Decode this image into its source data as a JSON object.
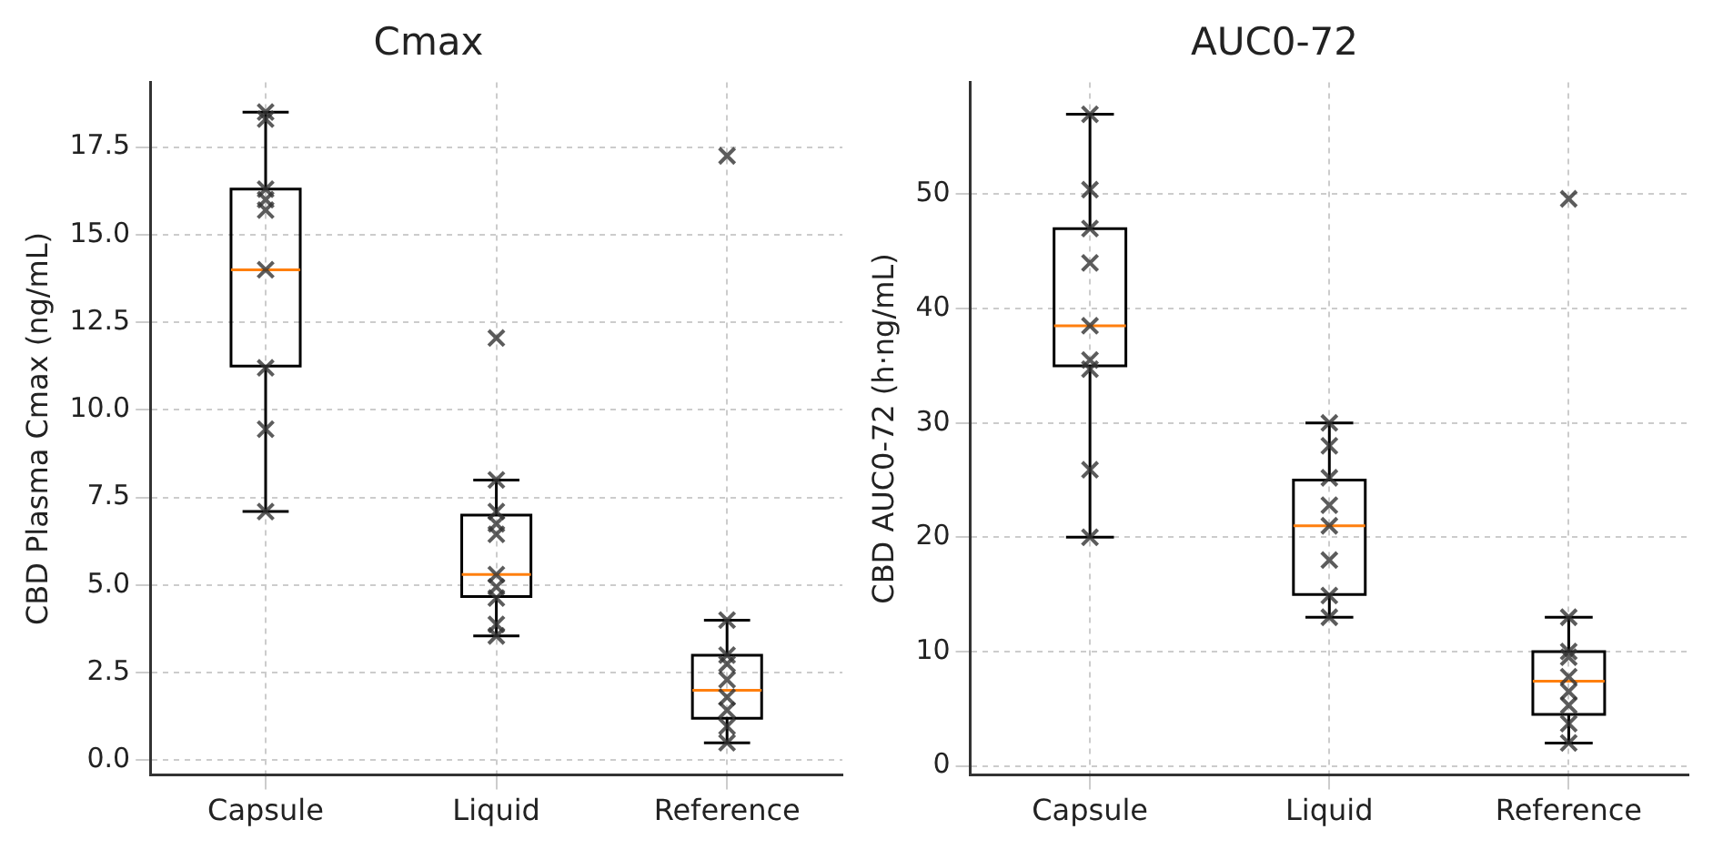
{
  "chart_data": [
    {
      "type": "box",
      "title": "Cmax",
      "ylabel": "CBD Plasma Cmax (ng/mL)",
      "categories": [
        "Capsule",
        "Liquid",
        "Reference"
      ],
      "ylim": [
        -0.42,
        19.35
      ],
      "yticks": [
        {
          "value": 0,
          "label": "0.0"
        },
        {
          "value": 2.5,
          "label": "2.5"
        },
        {
          "value": 5,
          "label": "5.0"
        },
        {
          "value": 7.5,
          "label": "7.5"
        },
        {
          "value": 10,
          "label": "10.0"
        },
        {
          "value": 12.5,
          "label": "12.5"
        },
        {
          "value": 15,
          "label": "15.0"
        },
        {
          "value": 17.5,
          "label": "17.5"
        }
      ],
      "grid": true,
      "legend": false,
      "marker": "cross",
      "series": [
        {
          "type": "box",
          "color": "#000000",
          "boxes": [
            {
              "low": 7.1,
              "q1": 11.25,
              "median": 14.0,
              "q3": 16.3,
              "high": 18.5
            },
            {
              "low": 3.55,
              "q1": 4.67,
              "median": 5.3,
              "q3": 7.0,
              "high": 8.0
            },
            {
              "low": 0.5,
              "q1": 1.2,
              "median": 2.0,
              "q3": 3.0,
              "high": 4.0
            }
          ]
        },
        {
          "type": "scatter",
          "color": "#333333",
          "x": [
            "Capsule",
            "Capsule",
            "Capsule",
            "Capsule",
            "Capsule",
            "Capsule",
            "Capsule",
            "Capsule",
            "Capsule",
            "Liquid",
            "Liquid",
            "Liquid",
            "Liquid",
            "Liquid",
            "Liquid",
            "Liquid",
            "Liquid",
            "Liquid",
            "Liquid",
            "Reference",
            "Reference",
            "Reference",
            "Reference",
            "Reference",
            "Reference",
            "Reference",
            "Reference",
            "Reference"
          ],
          "values": [
            18.5,
            18.3,
            16.3,
            15.7,
            14.0,
            11.2,
            9.45,
            7.1,
            16.0,
            12.05,
            8.0,
            7.1,
            6.75,
            6.45,
            5.3,
            4.95,
            4.63,
            3.88,
            3.55,
            17.25,
            4.0,
            3.0,
            2.75,
            2.3,
            1.8,
            1.43,
            0.97,
            0.5
          ]
        }
      ]
    },
    {
      "type": "box",
      "title": "AUC0-72",
      "ylabel": "CBD AUC0-72 (h·ng/mL)",
      "categories": [
        "Capsule",
        "Liquid",
        "Reference"
      ],
      "ylim": [
        -0.8,
        59.8
      ],
      "yticks": [
        0,
        10,
        20,
        30,
        40,
        50
      ],
      "grid": true,
      "legend": false,
      "marker": "cross",
      "series": [
        {
          "type": "box",
          "color": "#000000",
          "boxes": [
            {
              "low": 20,
              "q1": 35,
              "median": 38.5,
              "q3": 47,
              "high": 57
            },
            {
              "low": 13,
              "q1": 15,
              "median": 21,
              "q3": 25,
              "high": 30
            },
            {
              "low": 2,
              "q1": 4.5,
              "median": 7.4,
              "q3": 10,
              "high": 13
            }
          ]
        },
        {
          "type": "scatter",
          "color": "#333333",
          "x": [
            "Capsule",
            "Capsule",
            "Capsule",
            "Capsule",
            "Capsule",
            "Capsule",
            "Capsule",
            "Capsule",
            "Capsule",
            "Liquid",
            "Liquid",
            "Liquid",
            "Liquid",
            "Liquid",
            "Liquid",
            "Liquid",
            "Liquid",
            "Reference",
            "Reference",
            "Reference",
            "Reference",
            "Reference",
            "Reference",
            "Reference",
            "Reference",
            "Reference"
          ],
          "values": [
            57,
            50.4,
            47,
            44,
            38.5,
            35.5,
            34.7,
            25.9,
            20,
            30,
            28,
            25.2,
            22.8,
            21,
            18,
            14.9,
            13,
            49.6,
            13,
            10,
            9.5,
            7.8,
            6.5,
            5.3,
            3.7,
            2
          ]
        }
      ]
    }
  ]
}
